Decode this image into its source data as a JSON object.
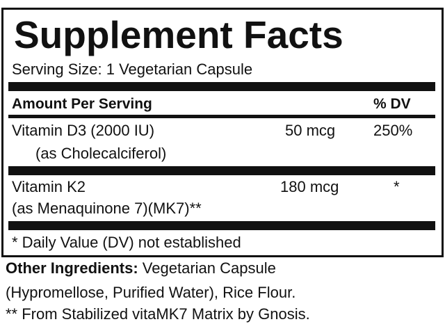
{
  "label": {
    "title": "Supplement Facts",
    "serving_size": "Serving Size:  1 Vegetarian Capsule",
    "header": {
      "amount": "Amount Per Serving",
      "dv": "% DV"
    },
    "rows": [
      {
        "name": "Vitamin D3 (2000 IU)",
        "detail": "(as Cholecalciferol)",
        "amount": "50 mcg",
        "dv": "250%"
      },
      {
        "name": "Vitamin K2",
        "detail": "(as Menaquinone 7)(MK7)**",
        "amount": "180 mcg",
        "dv": "*"
      }
    ],
    "footnote": "* Daily Value (DV) not established"
  },
  "other": {
    "label": "Other Ingredients:",
    "text1": " Vegetarian Capsule",
    "text2": "(Hypromellose, Purified Water), Rice Flour.",
    "text3": "** From Stabilized vitaMK7 Matrix by Gnosis."
  }
}
